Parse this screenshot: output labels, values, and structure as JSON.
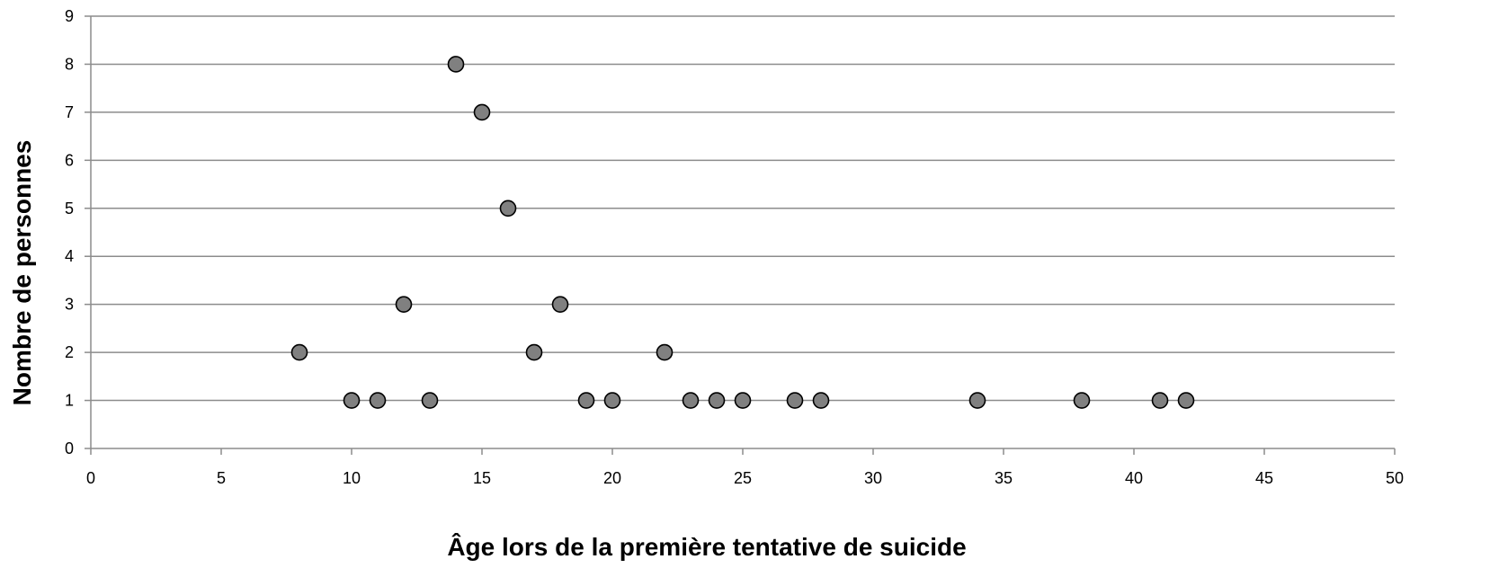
{
  "chart_data": {
    "type": "scatter",
    "title": "",
    "xlabel": "Âge lors de la première tentative de suicide",
    "ylabel": "Nombre de personnes",
    "xlim": [
      0,
      50
    ],
    "ylim": [
      0,
      9
    ],
    "x_ticks": [
      0,
      5,
      10,
      15,
      20,
      25,
      30,
      35,
      40,
      45,
      50
    ],
    "y_ticks": [
      0,
      1,
      2,
      3,
      4,
      5,
      6,
      7,
      8,
      9
    ],
    "grid": "horizontal",
    "legend": "none",
    "marker_fill": "#808080",
    "marker_stroke": "#000000",
    "points": [
      {
        "x": 8,
        "y": 2
      },
      {
        "x": 10,
        "y": 1
      },
      {
        "x": 11,
        "y": 1
      },
      {
        "x": 12,
        "y": 3
      },
      {
        "x": 13,
        "y": 1
      },
      {
        "x": 14,
        "y": 8
      },
      {
        "x": 15,
        "y": 7
      },
      {
        "x": 16,
        "y": 5
      },
      {
        "x": 17,
        "y": 2
      },
      {
        "x": 18,
        "y": 3
      },
      {
        "x": 19,
        "y": 1
      },
      {
        "x": 20,
        "y": 1
      },
      {
        "x": 22,
        "y": 2
      },
      {
        "x": 23,
        "y": 1
      },
      {
        "x": 24,
        "y": 1
      },
      {
        "x": 25,
        "y": 1
      },
      {
        "x": 27,
        "y": 1
      },
      {
        "x": 28,
        "y": 1
      },
      {
        "x": 34,
        "y": 1
      },
      {
        "x": 38,
        "y": 1
      },
      {
        "x": 41,
        "y": 1
      },
      {
        "x": 42,
        "y": 1
      }
    ]
  }
}
